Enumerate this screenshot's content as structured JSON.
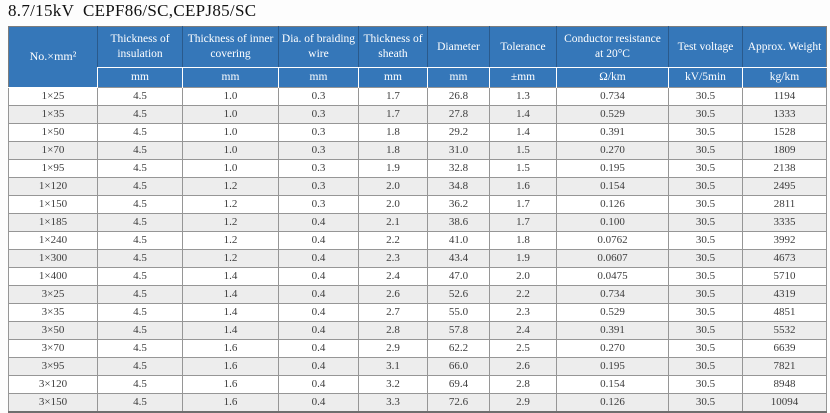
{
  "title": "8.7/15kV  CEPF86/SC,CEPJ85/SC",
  "colors": {
    "header_bg": "#3577b9",
    "header_text": "#ffffff",
    "stripe": "#ededed",
    "border": "#969696"
  },
  "table": {
    "columns": [
      {
        "label": "No.×mm²",
        "unit": ""
      },
      {
        "label": "Thickness of insulation",
        "unit": "mm"
      },
      {
        "label": "Thickness of inner covering",
        "unit": "mm"
      },
      {
        "label": "Dia. of braiding wire",
        "unit": "mm"
      },
      {
        "label": "Thickness of sheath",
        "unit": "mm"
      },
      {
        "label": "Diameter",
        "unit": "mm"
      },
      {
        "label": "Tolerance",
        "unit": "±mm"
      },
      {
        "label": "Conductor resistance at 20°C",
        "unit": "Ω/km"
      },
      {
        "label": "Test voltage",
        "unit": "kV/5min"
      },
      {
        "label": "Approx. Weight",
        "unit": "kg/km"
      }
    ],
    "rows": [
      [
        "1×25",
        "4.5",
        "1.0",
        "0.3",
        "1.7",
        "26.8",
        "1.3",
        "0.734",
        "30.5",
        "1194"
      ],
      [
        "1×35",
        "4.5",
        "1.0",
        "0.3",
        "1.7",
        "27.8",
        "1.4",
        "0.529",
        "30.5",
        "1333"
      ],
      [
        "1×50",
        "4.5",
        "1.0",
        "0.3",
        "1.8",
        "29.2",
        "1.4",
        "0.391",
        "30.5",
        "1528"
      ],
      [
        "1×70",
        "4.5",
        "1.0",
        "0.3",
        "1.8",
        "31.0",
        "1.5",
        "0.270",
        "30.5",
        "1809"
      ],
      [
        "1×95",
        "4.5",
        "1.0",
        "0.3",
        "1.9",
        "32.8",
        "1.5",
        "0.195",
        "30.5",
        "2138"
      ],
      [
        "1×120",
        "4.5",
        "1.2",
        "0.3",
        "2.0",
        "34.8",
        "1.6",
        "0.154",
        "30.5",
        "2495"
      ],
      [
        "1×150",
        "4.5",
        "1.2",
        "0.3",
        "2.0",
        "36.2",
        "1.7",
        "0.126",
        "30.5",
        "2811"
      ],
      [
        "1×185",
        "4.5",
        "1.2",
        "0.4",
        "2.1",
        "38.6",
        "1.7",
        "0.100",
        "30.5",
        "3335"
      ],
      [
        "1×240",
        "4.5",
        "1.2",
        "0.4",
        "2.2",
        "41.0",
        "1.8",
        "0.0762",
        "30.5",
        "3992"
      ],
      [
        "1×300",
        "4.5",
        "1.2",
        "0.4",
        "2.3",
        "43.4",
        "1.9",
        "0.0607",
        "30.5",
        "4673"
      ],
      [
        "1×400",
        "4.5",
        "1.4",
        "0.4",
        "2.4",
        "47.0",
        "2.0",
        "0.0475",
        "30.5",
        "5710"
      ],
      [
        "3×25",
        "4.5",
        "1.4",
        "0.4",
        "2.6",
        "52.6",
        "2.2",
        "0.734",
        "30.5",
        "4319"
      ],
      [
        "3×35",
        "4.5",
        "1.4",
        "0.4",
        "2.7",
        "55.0",
        "2.3",
        "0.529",
        "30.5",
        "4851"
      ],
      [
        "3×50",
        "4.5",
        "1.4",
        "0.4",
        "2.8",
        "57.8",
        "2.4",
        "0.391",
        "30.5",
        "5532"
      ],
      [
        "3×70",
        "4.5",
        "1.6",
        "0.4",
        "2.9",
        "62.2",
        "2.5",
        "0.270",
        "30.5",
        "6639"
      ],
      [
        "3×95",
        "4.5",
        "1.6",
        "0.4",
        "3.1",
        "66.0",
        "2.6",
        "0.195",
        "30.5",
        "7821"
      ],
      [
        "3×120",
        "4.5",
        "1.6",
        "0.4",
        "3.2",
        "69.4",
        "2.8",
        "0.154",
        "30.5",
        "8948"
      ],
      [
        "3×150",
        "4.5",
        "1.6",
        "0.4",
        "3.3",
        "72.6",
        "2.9",
        "0.126",
        "30.5",
        "10094"
      ]
    ]
  }
}
